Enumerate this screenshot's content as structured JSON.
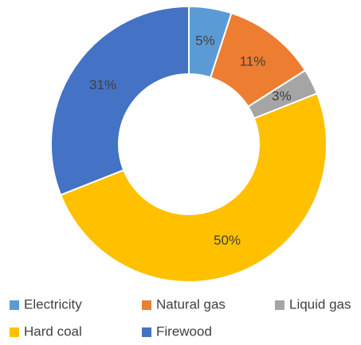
{
  "chart_data": {
    "type": "donut",
    "categories": [
      "Electricity",
      "Natural gas",
      "Liquid gas",
      "Hard coal",
      "Firewood"
    ],
    "values": [
      5,
      11,
      3,
      50,
      31
    ],
    "value_labels": [
      "5%",
      "11%",
      "3%",
      "50%",
      "31%"
    ],
    "colors": [
      "#5b9bd5",
      "#ed7d31",
      "#a5a5a5",
      "#ffc000",
      "#4472c4"
    ],
    "legend": "bottom"
  }
}
